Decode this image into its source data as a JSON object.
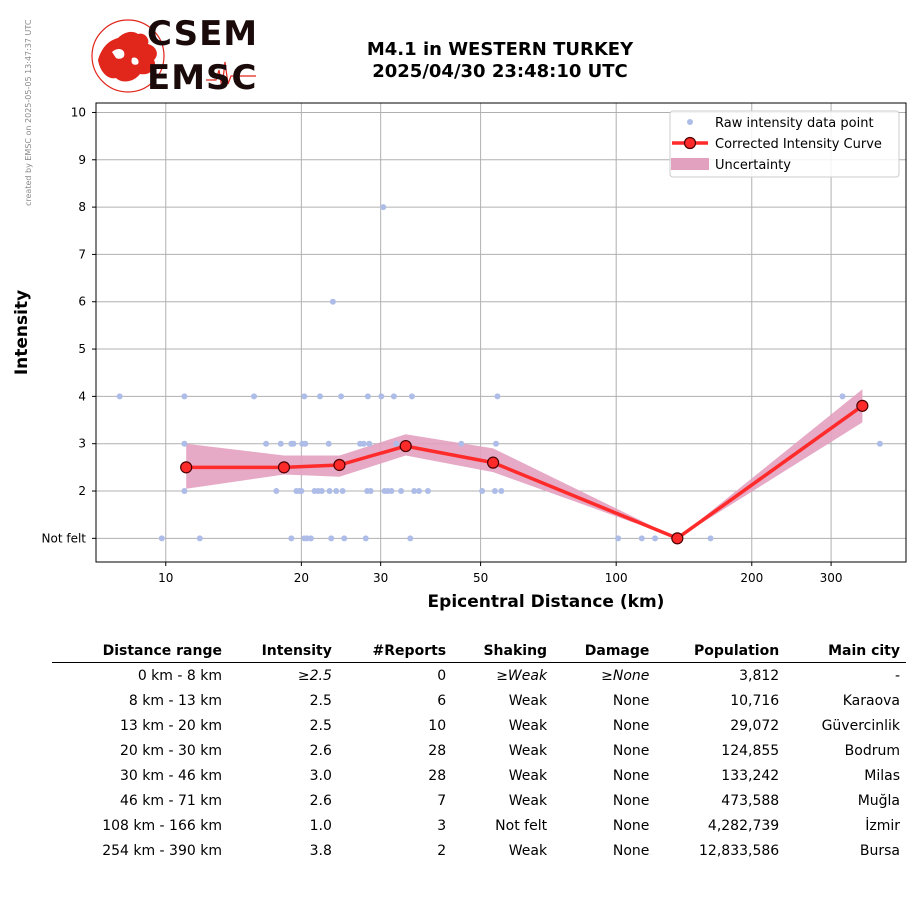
{
  "header": {
    "title_line1": "M4.1 in WESTERN TURKEY",
    "title_line2": "2025/04/30 23:48:10 UTC",
    "created_by": "created by EMSC on 2025-05-05 13:47:37 UTC",
    "logo_top": "CSEM",
    "logo_bottom": "EMSC"
  },
  "colors": {
    "raw_points": "#aebde8",
    "curve": "#ff2a2a",
    "curve_marker_edge": "#4a0000",
    "uncertainty": "#e3a1c0",
    "grid": "#b0b0b0",
    "logo_red": "#e1261c"
  },
  "chart_data": {
    "type": "scatter",
    "xscale": "log",
    "xlim": [
      7,
      440
    ],
    "ylim": [
      0.5,
      10.2
    ],
    "xlabel": "Epicentral Distance (km)",
    "ylabel": "Intensity",
    "xticks": [
      10,
      20,
      30,
      50,
      100,
      200,
      300
    ],
    "xtick_labels": [
      "10",
      "20",
      "30",
      "50",
      "100",
      "200",
      "300"
    ],
    "yticks": [
      1,
      2,
      3,
      4,
      5,
      6,
      7,
      8,
      9,
      10
    ],
    "ytick_labels": [
      "Not felt",
      "2",
      "3",
      "4",
      "5",
      "6",
      "7",
      "8",
      "9",
      "10"
    ],
    "grid": true,
    "legend_position": "top-right",
    "legend": [
      "Raw intensity data point",
      "Corrected Intensity Curve",
      "Uncertainty"
    ],
    "raw_points": [
      [
        7.9,
        4
      ],
      [
        9.8,
        1
      ],
      [
        11,
        4
      ],
      [
        11,
        3
      ],
      [
        11,
        2
      ],
      [
        11.9,
        1
      ],
      [
        15.7,
        4
      ],
      [
        16.7,
        3
      ],
      [
        17.6,
        2
      ],
      [
        18,
        3
      ],
      [
        19,
        3
      ],
      [
        19.2,
        3
      ],
      [
        19,
        1
      ],
      [
        19.5,
        2
      ],
      [
        19.8,
        2
      ],
      [
        20,
        2
      ],
      [
        20.1,
        3
      ],
      [
        20.4,
        3
      ],
      [
        20.3,
        4
      ],
      [
        20.3,
        1
      ],
      [
        20.6,
        1
      ],
      [
        21,
        1
      ],
      [
        21.4,
        2
      ],
      [
        21.8,
        2
      ],
      [
        22,
        4
      ],
      [
        22.2,
        2
      ],
      [
        23,
        3
      ],
      [
        23.1,
        2
      ],
      [
        23.3,
        1
      ],
      [
        23.5,
        6
      ],
      [
        23.9,
        2
      ],
      [
        24.5,
        4
      ],
      [
        24.7,
        2
      ],
      [
        24.9,
        1
      ],
      [
        27,
        3
      ],
      [
        27.5,
        3
      ],
      [
        27.8,
        1
      ],
      [
        28,
        2
      ],
      [
        28.1,
        4
      ],
      [
        28.3,
        3
      ],
      [
        28.5,
        2
      ],
      [
        30.1,
        4
      ],
      [
        30.4,
        8
      ],
      [
        30.6,
        2
      ],
      [
        31.1,
        2
      ],
      [
        31.7,
        2
      ],
      [
        32.1,
        4
      ],
      [
        32.5,
        3
      ],
      [
        33.3,
        2
      ],
      [
        34.2,
        3
      ],
      [
        34.9,
        1
      ],
      [
        35.2,
        4
      ],
      [
        35.6,
        2
      ],
      [
        36.5,
        2
      ],
      [
        38.2,
        2
      ],
      [
        45.3,
        3
      ],
      [
        50.4,
        2
      ],
      [
        53.8,
        2
      ],
      [
        54.1,
        3
      ],
      [
        54.5,
        4
      ],
      [
        55.6,
        2
      ],
      [
        101,
        1
      ],
      [
        114,
        1
      ],
      [
        122,
        1
      ],
      [
        162,
        1
      ],
      [
        318,
        4
      ],
      [
        385,
        3
      ]
    ],
    "series": [
      {
        "name": "Corrected Intensity Curve",
        "x": [
          11.1,
          18.3,
          24.3,
          34.1,
          53.3,
          136.7,
          352
        ],
        "y": [
          2.5,
          2.5,
          2.55,
          2.95,
          2.6,
          1.0,
          3.8
        ]
      }
    ],
    "uncertainty": {
      "x": [
        11.1,
        18.3,
        24.3,
        34.1,
        53.3,
        136.7,
        352
      ],
      "lower": [
        2.05,
        2.35,
        2.3,
        2.75,
        2.4,
        1.0,
        3.45
      ],
      "upper": [
        3.0,
        2.75,
        2.75,
        3.2,
        2.9,
        1.0,
        4.15
      ]
    }
  },
  "table": {
    "headers": [
      "Distance range",
      "Intensity",
      "#Reports",
      "Shaking",
      "Damage",
      "Population",
      "Main city"
    ],
    "rows": [
      [
        "0 km -    8 km",
        "≥2.5",
        "0",
        "≥Weak",
        "≥None",
        "3,812",
        "-"
      ],
      [
        "8 km -   13 km",
        "2.5",
        "6",
        "Weak",
        "None",
        "10,716",
        "Karaova"
      ],
      [
        "13 km -   20 km",
        "2.5",
        "10",
        "Weak",
        "None",
        "29,072",
        "Güvercinlik"
      ],
      [
        "20 km -   30 km",
        "2.6",
        "28",
        "Weak",
        "None",
        "124,855",
        "Bodrum"
      ],
      [
        "30 km -   46 km",
        "3.0",
        "28",
        "Weak",
        "None",
        "133,242",
        "Milas"
      ],
      [
        "46 km -   71 km",
        "2.6",
        "7",
        "Weak",
        "None",
        "473,588",
        "Muğla"
      ],
      [
        "108 km -  166 km",
        "1.0",
        "3",
        "Not felt",
        "None",
        "4,282,739",
        "İzmir"
      ],
      [
        "254 km -  390 km",
        "3.8",
        "2",
        "Weak",
        "None",
        "12,833,586",
        "Bursa"
      ]
    ]
  }
}
